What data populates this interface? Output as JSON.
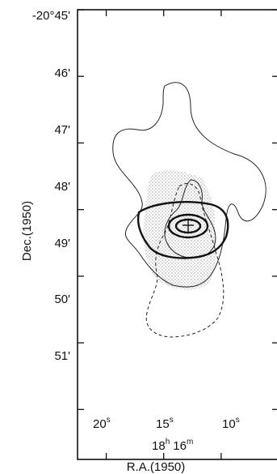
{
  "chart_data": {
    "type": "contour",
    "title": "",
    "xlabel": "R.A.(1950)",
    "ylabel": "Dec.(1950)",
    "x_ref_label": {
      "hours": "18",
      "h": "h",
      "minutes": "16",
      "m": "m"
    },
    "x_ticks": [
      {
        "value": "20",
        "unit": "s"
      },
      {
        "value": "15",
        "unit": "s"
      },
      {
        "value": "10",
        "unit": "s"
      }
    ],
    "y_ticks": [
      "-20°45'",
      "46'",
      "47'",
      "48'",
      "49'",
      "50'",
      "51'"
    ],
    "xlim_seconds": [
      22.5,
      5.0
    ],
    "ylim_arcmin": [
      45.0,
      51.75
    ],
    "center_marker": {
      "symbol": "+",
      "ra_s": 13.6,
      "dec_arcmin": 48.7
    },
    "contours": [
      {
        "style": "thin-solid",
        "role": "outer envelope"
      },
      {
        "style": "dashed",
        "role": "southern extension"
      },
      {
        "style": "thin-solid",
        "role": "inner"
      },
      {
        "style": "thick-solid",
        "role": "middle"
      },
      {
        "style": "thick-solid",
        "role": "core"
      }
    ],
    "shaded_region": true
  }
}
